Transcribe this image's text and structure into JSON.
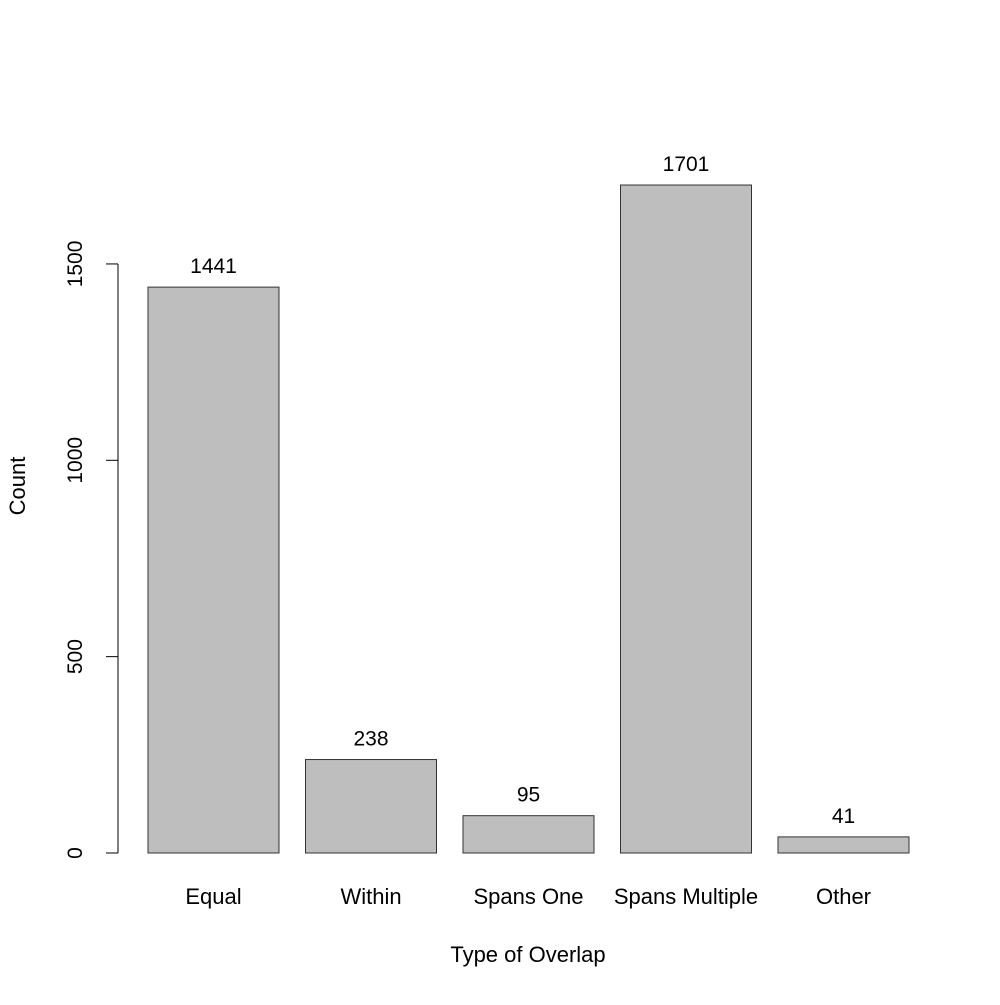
{
  "chart_data": {
    "type": "bar",
    "title": "",
    "xlabel": "Type of Overlap",
    "ylabel": "Count",
    "categories": [
      "Equal",
      "Within",
      "Spans One",
      "Spans Multiple",
      "Other"
    ],
    "values": [
      1441,
      238,
      95,
      1701,
      41
    ],
    "data_labels": [
      "1441",
      "238",
      "95",
      "1701",
      "41"
    ],
    "ylim": [
      0,
      1701
    ],
    "yticks": [
      0,
      500,
      1000,
      1500
    ],
    "ytick_labels": [
      "0",
      "500",
      "1000",
      "1500"
    ],
    "grid": false,
    "legend": "none",
    "colors": {
      "bar_fill": "#bebebe",
      "bar_stroke": "#333333",
      "axis": "#000000",
      "text": "#000000"
    }
  }
}
